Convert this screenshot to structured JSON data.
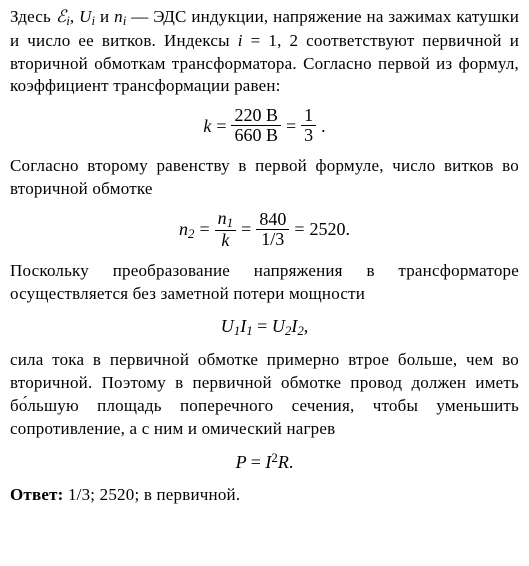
{
  "p1": "Здесь ℰᵢ, Uᵢ и nᵢ — ЭДС индукции, напряжение на зажимах катушки и число ее витков. Индексы i = 1, 2 соответствуют первичной и вторичной обмоткам трансформатора. Согласно первой из формул, коэффициент трансформации равен:",
  "eq1": {
    "lhs": "k",
    "frac1_num": "220 В",
    "frac1_den": "660 В",
    "frac2_num": "1",
    "frac2_den": "3",
    "tail": "."
  },
  "p2": "Согласно второму равенству в первой формуле, число витков во вторичной обмотке",
  "eq2": {
    "lhs_var": "n",
    "lhs_sub": "2",
    "f1_num_var": "n",
    "f1_num_sub": "1",
    "f1_den": "k",
    "f2_num": "840",
    "f2_den": "1/3",
    "rhs": "2520."
  },
  "p3": "Поскольку преобразование напряжения в трансформаторе осуществляется без заметной потери мощности",
  "eq3": "U₁I₁ = U₂I₂,",
  "p4": "сила тока в первичной обмотке примерно втрое больше, чем во вторичной. Поэтому в первичной обмотке провод должен иметь бо́льшую площадь поперечного сечения, чтобы уменьшить сопротивление, а с ним и омический нагрев",
  "eq4": "P = I²R.",
  "answer_label": "Ответ:",
  "answer_text": " 1/3; 2520; в первичной."
}
